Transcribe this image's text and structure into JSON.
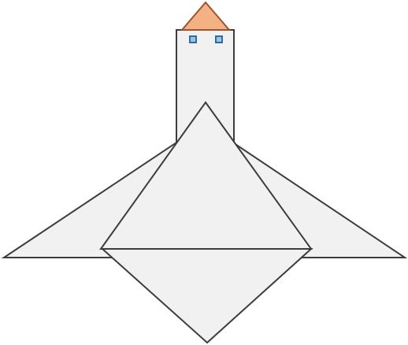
{
  "diagram": {
    "colors": {
      "background": "#ffffff",
      "body_fill": "#f1f1f1",
      "body_stroke": "#3d3d3d",
      "roof_fill": "#f4b183",
      "roof_stroke": "#a0522d",
      "window_fill": "#9dc3e6",
      "window_stroke": "#2e6da4"
    }
  }
}
